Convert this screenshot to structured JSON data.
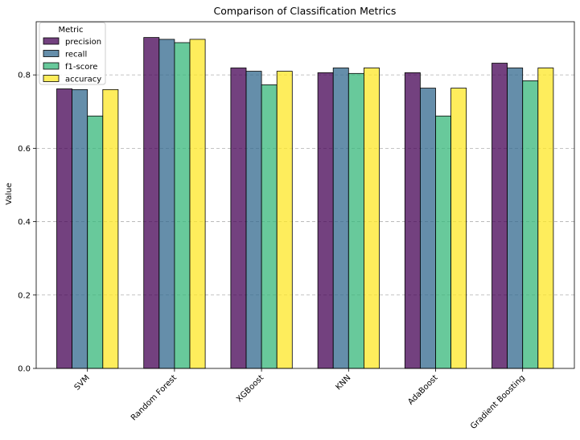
{
  "chart_data": {
    "type": "bar",
    "title": "Comparison of Classification Metrics",
    "xlabel": "",
    "ylabel": "Value",
    "categories": [
      "SVM",
      "Random Forest",
      "XGBoost",
      "KNN",
      "AdaBoost",
      "Gradient Boosting"
    ],
    "series": [
      {
        "name": "precision",
        "color": "#440154",
        "values": [
          0.762,
          0.902,
          0.819,
          0.806,
          0.806,
          0.832
        ]
      },
      {
        "name": "recall",
        "color": "#31688e",
        "values": [
          0.76,
          0.897,
          0.81,
          0.819,
          0.764,
          0.819
        ]
      },
      {
        "name": "f1-score",
        "color": "#35b779",
        "values": [
          0.688,
          0.888,
          0.773,
          0.804,
          0.688,
          0.784
        ]
      },
      {
        "name": "accuracy",
        "color": "#fde725",
        "values": [
          0.76,
          0.897,
          0.81,
          0.819,
          0.764,
          0.819
        ]
      }
    ],
    "ylim": [
      0.0,
      0.945
    ],
    "yticks": [
      0.0,
      0.2,
      0.4,
      0.6,
      0.8
    ],
    "ytick_labels": [
      "0.0",
      "0.2",
      "0.4",
      "0.6",
      "0.8"
    ],
    "grid": "y-dashed",
    "legend": {
      "title": "Metric",
      "placement": "top-left"
    },
    "x_tick_rotation": "45"
  }
}
